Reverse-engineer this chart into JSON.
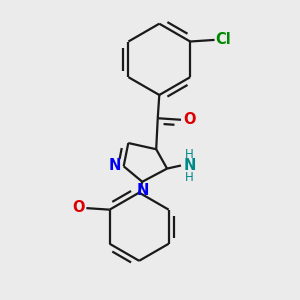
{
  "background_color": "#ebebeb",
  "bond_color": "#1a1a1a",
  "bond_width": 1.6,
  "atom_colors": {
    "N": "#0000ee",
    "O": "#dd0000",
    "Cl": "#008800",
    "NH": "#008888"
  },
  "font_size_atom": 10.5,
  "font_size_small": 8.5
}
